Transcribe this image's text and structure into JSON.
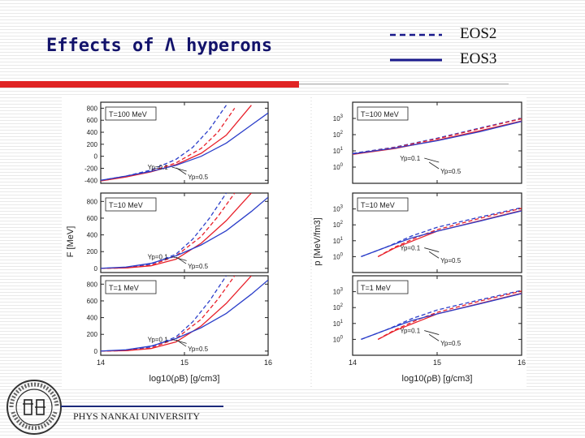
{
  "slide": {
    "title": "Effects of Λ hyperons",
    "footer": "PHYS NANKAI UNIVERSITY"
  },
  "legend": [
    {
      "label": "EOS2",
      "style": "dashed",
      "color": "#1a1a8c"
    },
    {
      "label": "EOS3",
      "style": "solid",
      "color": "#1a1a8c"
    }
  ],
  "logo": {
    "text": "NANKAI UNIVERSITY TIANJIN",
    "mark": "南开"
  },
  "colors": {
    "red": "#e8202a",
    "blue": "#2b3ec9",
    "title": "#13136b",
    "bar": "#e02424"
  },
  "chart_data": [
    {
      "type": "line",
      "xlabel": "log10(ρB) [g/cm3]",
      "ylabel": "F [MeV]",
      "xlim": [
        14,
        16
      ],
      "xticks": [
        14,
        15,
        16
      ],
      "grid": false,
      "panels": [
        {
          "label": "T=100 MeV",
          "ylim": [
            -450,
            900
          ],
          "yticks": [
            -400,
            -200,
            0,
            200,
            400,
            600,
            800
          ],
          "annotations": [
            "Yp=0.1",
            "Yp=0.5"
          ],
          "series": [
            {
              "color": "blue",
              "style": "dashed",
              "x": [
                14.0,
                14.3,
                14.6,
                14.9,
                15.1,
                15.3,
                15.5
              ],
              "y": [
                -400,
                -330,
                -230,
                -50,
                150,
                450,
                850
              ]
            },
            {
              "color": "red",
              "style": "dashed",
              "x": [
                14.0,
                14.3,
                14.6,
                14.9,
                15.2,
                15.4,
                15.6
              ],
              "y": [
                -410,
                -340,
                -250,
                -110,
                130,
                400,
                800
              ]
            },
            {
              "color": "red",
              "style": "solid",
              "x": [
                14.0,
                14.3,
                14.6,
                14.9,
                15.2,
                15.5,
                15.8
              ],
              "y": [
                -410,
                -345,
                -260,
                -140,
                50,
                350,
                850
              ]
            },
            {
              "color": "blue",
              "style": "solid",
              "x": [
                14.0,
                14.3,
                14.6,
                14.9,
                15.2,
                15.5,
                15.8,
                16.0
              ],
              "y": [
                -400,
                -330,
                -250,
                -150,
                0,
                220,
                520,
                720
              ]
            }
          ]
        },
        {
          "label": "T=10 MeV",
          "ylim": [
            -50,
            900
          ],
          "yticks": [
            0,
            200,
            400,
            600,
            800
          ],
          "annotations": [
            "Yp=0.1",
            "Yp=0.5"
          ],
          "series": [
            {
              "color": "blue",
              "style": "dashed",
              "x": [
                14.0,
                14.3,
                14.6,
                14.9,
                15.1,
                15.3,
                15.5
              ],
              "y": [
                0,
                10,
                50,
                170,
                350,
                600,
                900
              ]
            },
            {
              "color": "red",
              "style": "dashed",
              "x": [
                14.0,
                14.3,
                14.6,
                14.9,
                15.2,
                15.4,
                15.6
              ],
              "y": [
                0,
                5,
                35,
                150,
                380,
                620,
                900
              ]
            },
            {
              "color": "red",
              "style": "solid",
              "x": [
                14.0,
                14.3,
                14.6,
                14.9,
                15.2,
                15.5,
                15.8
              ],
              "y": [
                0,
                5,
                30,
                110,
                300,
                570,
                900
              ]
            },
            {
              "color": "blue",
              "style": "solid",
              "x": [
                14.0,
                14.3,
                14.6,
                14.9,
                15.2,
                15.5,
                15.8,
                16.0
              ],
              "y": [
                0,
                15,
                60,
                150,
                280,
                450,
                680,
                850
              ]
            }
          ]
        },
        {
          "label": "T=1 MeV",
          "ylim": [
            -50,
            900
          ],
          "yticks": [
            0,
            200,
            400,
            600,
            800
          ],
          "annotations": [
            "Yp=0.1",
            "Yp=0.5"
          ],
          "series": [
            {
              "color": "blue",
              "style": "dashed",
              "x": [
                14.0,
                14.3,
                14.6,
                14.9,
                15.1,
                15.3,
                15.5
              ],
              "y": [
                0,
                10,
                50,
                170,
                350,
                600,
                900
              ]
            },
            {
              "color": "red",
              "style": "dashed",
              "x": [
                14.0,
                14.3,
                14.6,
                14.9,
                15.2,
                15.4,
                15.6
              ],
              "y": [
                0,
                5,
                35,
                150,
                380,
                620,
                900
              ]
            },
            {
              "color": "red",
              "style": "solid",
              "x": [
                14.0,
                14.3,
                14.6,
                14.9,
                15.2,
                15.5,
                15.8
              ],
              "y": [
                0,
                5,
                30,
                110,
                300,
                570,
                900
              ]
            },
            {
              "color": "blue",
              "style": "solid",
              "x": [
                14.0,
                14.3,
                14.6,
                14.9,
                15.2,
                15.5,
                15.8,
                16.0
              ],
              "y": [
                0,
                15,
                60,
                150,
                280,
                450,
                680,
                850
              ]
            }
          ]
        }
      ]
    },
    {
      "type": "line",
      "xlabel": "log10(ρB) [g/cm3]",
      "ylabel": "p [MeV/fm3]",
      "xlim": [
        14,
        16
      ],
      "xticks": [
        14,
        15,
        16
      ],
      "yscale": "log",
      "grid": false,
      "panels": [
        {
          "label": "T=100 MeV",
          "ylim": [
            0.1,
            10000
          ],
          "yticks": [
            1,
            10,
            100,
            1000
          ],
          "annotations": [
            "Yp=0.1",
            "Yp=0.5"
          ],
          "series": [
            {
              "color": "blue",
              "style": "dashed",
              "x": [
                14.0,
                14.5,
                15.0,
                15.5,
                16.0
              ],
              "y": [
                7,
                17,
                60,
                250,
                1000
              ]
            },
            {
              "color": "red",
              "style": "dashed",
              "x": [
                14.0,
                14.5,
                15.0,
                15.5,
                16.0
              ],
              "y": [
                6.5,
                16,
                55,
                230,
                950
              ]
            },
            {
              "color": "red",
              "style": "solid",
              "x": [
                14.0,
                14.5,
                15.0,
                15.5,
                16.0
              ],
              "y": [
                6,
                14,
                45,
                170,
                700
              ]
            },
            {
              "color": "blue",
              "style": "solid",
              "x": [
                14.0,
                14.5,
                15.0,
                15.5,
                16.0
              ],
              "y": [
                6.5,
                15,
                42,
                150,
                650
              ]
            }
          ]
        },
        {
          "label": "T=10 MeV",
          "ylim": [
            0.1,
            10000
          ],
          "yticks": [
            1,
            10,
            100,
            1000
          ],
          "annotations": [
            "Yp=0.1",
            "Yp=0.5"
          ],
          "series": [
            {
              "color": "blue",
              "style": "dashed",
              "x": [
                14.1,
                14.4,
                14.7,
                15.0,
                15.5,
                16.0
              ],
              "y": [
                1,
                4,
                20,
                70,
                300,
                1200
              ]
            },
            {
              "color": "red",
              "style": "dashed",
              "x": [
                14.3,
                14.5,
                14.8,
                15.0,
                15.5,
                16.0
              ],
              "y": [
                1,
                4,
                20,
                50,
                250,
                1100
              ]
            },
            {
              "color": "red",
              "style": "solid",
              "x": [
                14.3,
                14.5,
                14.8,
                15.0,
                15.5,
                16.0
              ],
              "y": [
                1,
                3.5,
                15,
                40,
                180,
                800
              ]
            },
            {
              "color": "blue",
              "style": "solid",
              "x": [
                14.1,
                14.4,
                14.7,
                15.0,
                15.5,
                16.0
              ],
              "y": [
                1,
                4,
                15,
                40,
                170,
                750
              ]
            }
          ]
        },
        {
          "label": "T=1 MeV",
          "ylim": [
            0.1,
            10000
          ],
          "yticks": [
            1,
            10,
            100,
            1000
          ],
          "annotations": [
            "Yp=0.1",
            "Yp=0.5"
          ],
          "series": [
            {
              "color": "blue",
              "style": "dashed",
              "x": [
                14.1,
                14.4,
                14.7,
                15.0,
                15.5,
                16.0
              ],
              "y": [
                1,
                4,
                20,
                70,
                300,
                1200
              ]
            },
            {
              "color": "red",
              "style": "dashed",
              "x": [
                14.3,
                14.5,
                14.8,
                15.0,
                15.5,
                16.0
              ],
              "y": [
                1,
                4,
                20,
                50,
                250,
                1100
              ]
            },
            {
              "color": "red",
              "style": "solid",
              "x": [
                14.3,
                14.5,
                14.8,
                15.0,
                15.5,
                16.0
              ],
              "y": [
                1,
                3.5,
                15,
                40,
                180,
                800
              ]
            },
            {
              "color": "blue",
              "style": "solid",
              "x": [
                14.1,
                14.4,
                14.7,
                15.0,
                15.5,
                16.0
              ],
              "y": [
                1,
                4,
                15,
                40,
                170,
                750
              ]
            }
          ]
        }
      ]
    }
  ]
}
